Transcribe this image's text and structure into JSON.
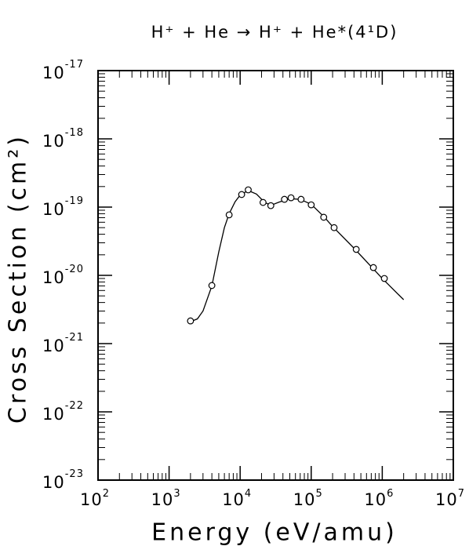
{
  "chart_data": {
    "type": "scatter",
    "title": "H⁺ + He → H⁺ + He*(4¹D)",
    "xlabel": "Energy (eV/amu)",
    "ylabel": "Cross Section (cm²)",
    "xscale": "log",
    "yscale": "log",
    "xlim": [
      100,
      10000000
    ],
    "ylim": [
      1e-23,
      1e-17
    ],
    "xticks": [
      {
        "value": 100,
        "label": "10",
        "exponent": "2"
      },
      {
        "value": 1000,
        "label": "10",
        "exponent": "3"
      },
      {
        "value": 10000,
        "label": "10",
        "exponent": "4"
      },
      {
        "value": 100000,
        "label": "10",
        "exponent": "5"
      },
      {
        "value": 1000000,
        "label": "10",
        "exponent": "6"
      },
      {
        "value": 10000000,
        "label": "10",
        "exponent": "7"
      }
    ],
    "yticks": [
      {
        "value": 1e-23,
        "label": "10",
        "exponent": "-23"
      },
      {
        "value": 1e-22,
        "label": "10",
        "exponent": "-22"
      },
      {
        "value": 1e-21,
        "label": "10",
        "exponent": "-21"
      },
      {
        "value": 1e-20,
        "label": "10",
        "exponent": "-20"
      },
      {
        "value": 1e-19,
        "label": "10",
        "exponent": "-19"
      },
      {
        "value": 1e-18,
        "label": "10",
        "exponent": "-18"
      },
      {
        "value": 1e-17,
        "label": "10",
        "exponent": "-17"
      }
    ],
    "series": [
      {
        "style": "line",
        "color": "#000000",
        "x": [
          2000,
          2500,
          3000,
          4000,
          5000,
          6000,
          7000,
          8500,
          10000,
          13000,
          17000,
          22000,
          27000,
          35000,
          50000,
          70000,
          100000,
          150000,
          200000,
          400000,
          1000000,
          2000000
        ],
        "values": [
          2.1e-21,
          2.3e-21,
          3e-21,
          7e-21,
          2.2e-20,
          5e-20,
          8e-20,
          1.2e-19,
          1.5e-19,
          1.75e-19,
          1.55e-19,
          1.18e-19,
          1.06e-19,
          1.18e-19,
          1.33e-19,
          1.3e-19,
          1.1e-19,
          7.3e-20,
          5.2e-20,
          2.5e-20,
          9e-21,
          4.4e-21
        ]
      },
      {
        "style": "markers",
        "color": "#000000",
        "x": [
          2000,
          4000,
          7000,
          10500,
          13000,
          21000,
          27000,
          42000,
          52000,
          72000,
          100000,
          150000,
          210000,
          430000,
          750000,
          1070000
        ],
        "values": [
          2.15e-21,
          7.1e-21,
          7.7e-20,
          1.53e-19,
          1.79e-19,
          1.17e-19,
          1.05e-19,
          1.3e-19,
          1.37e-19,
          1.3e-19,
          1.08e-19,
          7.1e-20,
          5e-20,
          2.4e-20,
          1.3e-20,
          9e-21
        ]
      }
    ]
  }
}
